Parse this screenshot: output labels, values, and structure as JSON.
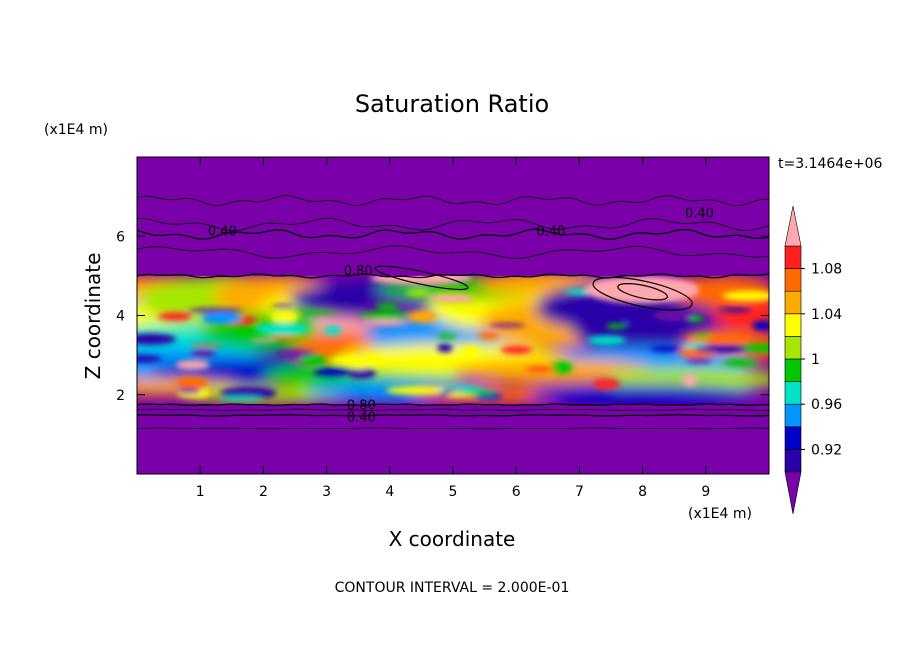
{
  "chart_data": {
    "type": "heatmap",
    "title": "Saturation Ratio",
    "xlabel": "X coordinate",
    "ylabel": "Z coordinate",
    "x_unit": "(x1E4 m)",
    "y_unit": "(x1E4 m)",
    "time_label": "t=3.1464e+06",
    "footer": "CONTOUR INTERVAL = 2.000E-01",
    "xlim": [
      0,
      10
    ],
    "ylim": [
      0,
      8
    ],
    "x_ticks": [
      "1",
      "2",
      "3",
      "4",
      "5",
      "6",
      "7",
      "8",
      "9"
    ],
    "y_ticks": [
      "2",
      "4",
      "6"
    ],
    "colorbar": {
      "levels": [
        0.9,
        0.92,
        0.94,
        0.96,
        0.98,
        1.0,
        1.02,
        1.04,
        1.06,
        1.08,
        1.1
      ],
      "tick_labels": [
        "0.92",
        "0.96",
        "1",
        "1.04",
        "1.08"
      ],
      "colors": [
        "#6a0aa8",
        "#2a00a8",
        "#0000c8",
        "#0096ff",
        "#00e3c7",
        "#00c800",
        "#a6e600",
        "#ffff00",
        "#ffaa00",
        "#ff6a00",
        "#ff2020",
        "#ffa8b0"
      ],
      "under_color": "#7a00aa",
      "over_color": "#ffa8b0"
    },
    "contour_labels": [
      "0.40",
      "0.40",
      "0.40",
      "0.80",
      "0.80",
      "0.40"
    ],
    "background_color": "#7a00aa"
  }
}
